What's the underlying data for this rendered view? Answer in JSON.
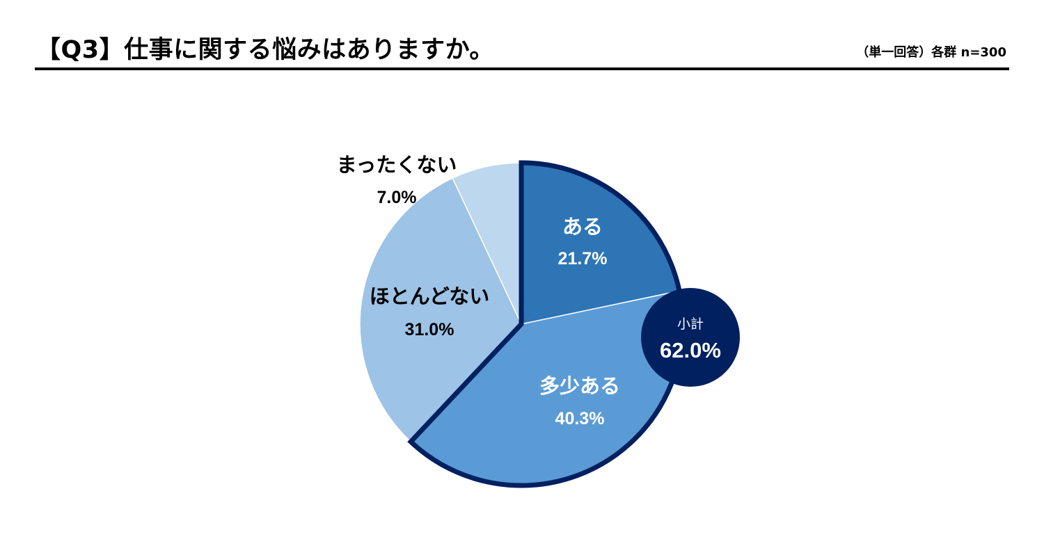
{
  "header": {
    "title": "【Q3】仕事に関する悩みはありますか。",
    "note": "（単一回答）各群 n=300"
  },
  "chart_data": {
    "type": "pie",
    "title": "【Q3】仕事に関する悩みはありますか。",
    "categories": [
      "ある",
      "多少ある",
      "ほとんどない",
      "まったくない"
    ],
    "values": [
      21.7,
      40.3,
      31.0,
      7.0
    ],
    "value_labels": [
      "21.7%",
      "40.3%",
      "31.0%",
      "7.0%"
    ],
    "start": "12 o'clock",
    "direction": "clockwise",
    "colors": [
      "#2E75B6",
      "#5B9BD5",
      "#9DC3E6",
      "#BDD7EE"
    ],
    "highlight": {
      "categories": [
        "ある",
        "多少ある"
      ],
      "outline_color": "#002060",
      "label": "小計",
      "value": 62.0,
      "value_label": "62.0%",
      "badge_color": "#002060"
    }
  }
}
